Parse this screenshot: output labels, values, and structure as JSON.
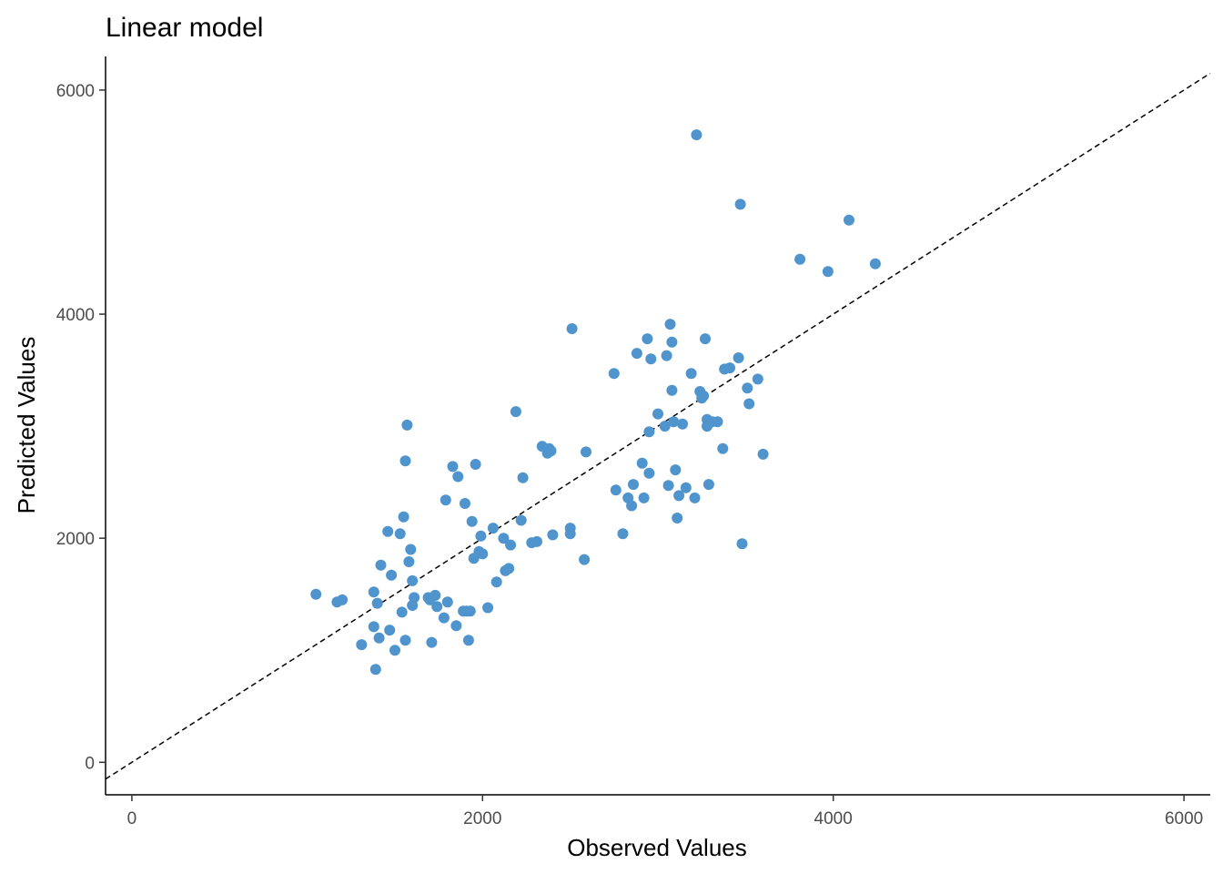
{
  "chart_data": {
    "type": "scatter",
    "title": "Linear model",
    "xlabel": "Observed Values",
    "ylabel": "Predicted Values",
    "xlim": [
      -150,
      6150
    ],
    "ylim": [
      -290,
      6300
    ],
    "x_ticks": [
      0,
      2000,
      4000,
      6000
    ],
    "y_ticks": [
      0,
      2000,
      4000,
      6000
    ],
    "x_tick_labels": [
      "0",
      "2000",
      "4000",
      "6000"
    ],
    "y_tick_labels": [
      "0",
      "2000",
      "4000",
      "6000"
    ],
    "grid": false,
    "reference_line": "y = x (dashed)",
    "point_color": "#4f94cd",
    "points": [
      [
        1050,
        1500
      ],
      [
        1170,
        1430
      ],
      [
        1200,
        1450
      ],
      [
        1310,
        1050
      ],
      [
        1380,
        1520
      ],
      [
        1380,
        1210
      ],
      [
        1390,
        830
      ],
      [
        1400,
        1420
      ],
      [
        1410,
        1110
      ],
      [
        1420,
        1760
      ],
      [
        1460,
        2060
      ],
      [
        1470,
        1180
      ],
      [
        1480,
        1670
      ],
      [
        1500,
        1000
      ],
      [
        1530,
        2040
      ],
      [
        1540,
        1340
      ],
      [
        1550,
        2190
      ],
      [
        1560,
        1090
      ],
      [
        1560,
        2690
      ],
      [
        1570,
        3010
      ],
      [
        1580,
        1790
      ],
      [
        1590,
        1900
      ],
      [
        1600,
        1400
      ],
      [
        1600,
        1620
      ],
      [
        1610,
        1470
      ],
      [
        1690,
        1470
      ],
      [
        1700,
        1450
      ],
      [
        1710,
        1070
      ],
      [
        1730,
        1490
      ],
      [
        1740,
        1390
      ],
      [
        1780,
        1290
      ],
      [
        1790,
        2340
      ],
      [
        1800,
        1430
      ],
      [
        1830,
        2640
      ],
      [
        1850,
        1220
      ],
      [
        1860,
        2550
      ],
      [
        1890,
        1350
      ],
      [
        1900,
        2310
      ],
      [
        1910,
        1350
      ],
      [
        1920,
        1090
      ],
      [
        1930,
        1350
      ],
      [
        1940,
        2150
      ],
      [
        1950,
        1820
      ],
      [
        1960,
        2660
      ],
      [
        1980,
        1880
      ],
      [
        1990,
        2020
      ],
      [
        2000,
        1860
      ],
      [
        2030,
        1380
      ],
      [
        2060,
        2090
      ],
      [
        2080,
        1610
      ],
      [
        2120,
        2000
      ],
      [
        2130,
        1710
      ],
      [
        2150,
        1730
      ],
      [
        2160,
        1940
      ],
      [
        2190,
        3130
      ],
      [
        2220,
        2160
      ],
      [
        2230,
        2540
      ],
      [
        2280,
        1960
      ],
      [
        2310,
        1970
      ],
      [
        2340,
        2820
      ],
      [
        2370,
        2760
      ],
      [
        2380,
        2800
      ],
      [
        2390,
        2780
      ],
      [
        2400,
        2030
      ],
      [
        2500,
        2090
      ],
      [
        2500,
        2040
      ],
      [
        2510,
        3870
      ],
      [
        2580,
        1810
      ],
      [
        2590,
        2770
      ],
      [
        2750,
        3470
      ],
      [
        2760,
        2430
      ],
      [
        2800,
        2040
      ],
      [
        2830,
        2360
      ],
      [
        2850,
        2290
      ],
      [
        2860,
        2480
      ],
      [
        2880,
        3650
      ],
      [
        2910,
        2670
      ],
      [
        2920,
        2360
      ],
      [
        2940,
        3780
      ],
      [
        2950,
        2950
      ],
      [
        2950,
        2580
      ],
      [
        2960,
        3600
      ],
      [
        3000,
        3110
      ],
      [
        3040,
        3000
      ],
      [
        3050,
        3630
      ],
      [
        3060,
        2470
      ],
      [
        3070,
        3910
      ],
      [
        3080,
        3750
      ],
      [
        3080,
        3320
      ],
      [
        3090,
        3040
      ],
      [
        3100,
        2610
      ],
      [
        3110,
        2180
      ],
      [
        3120,
        2380
      ],
      [
        3140,
        3020
      ],
      [
        3160,
        2450
      ],
      [
        3190,
        3470
      ],
      [
        3210,
        2360
      ],
      [
        3220,
        5600
      ],
      [
        3240,
        3310
      ],
      [
        3250,
        3250
      ],
      [
        3260,
        3270
      ],
      [
        3270,
        3780
      ],
      [
        3280,
        3000
      ],
      [
        3280,
        3060
      ],
      [
        3290,
        2480
      ],
      [
        3310,
        3040
      ],
      [
        3340,
        3040
      ],
      [
        3370,
        2800
      ],
      [
        3380,
        3510
      ],
      [
        3410,
        3520
      ],
      [
        3460,
        3610
      ],
      [
        3470,
        4980
      ],
      [
        3480,
        1950
      ],
      [
        3510,
        3340
      ],
      [
        3520,
        3200
      ],
      [
        3570,
        3420
      ],
      [
        3600,
        2750
      ],
      [
        3810,
        4490
      ],
      [
        3970,
        4380
      ],
      [
        4090,
        4840
      ],
      [
        4240,
        4450
      ]
    ]
  }
}
